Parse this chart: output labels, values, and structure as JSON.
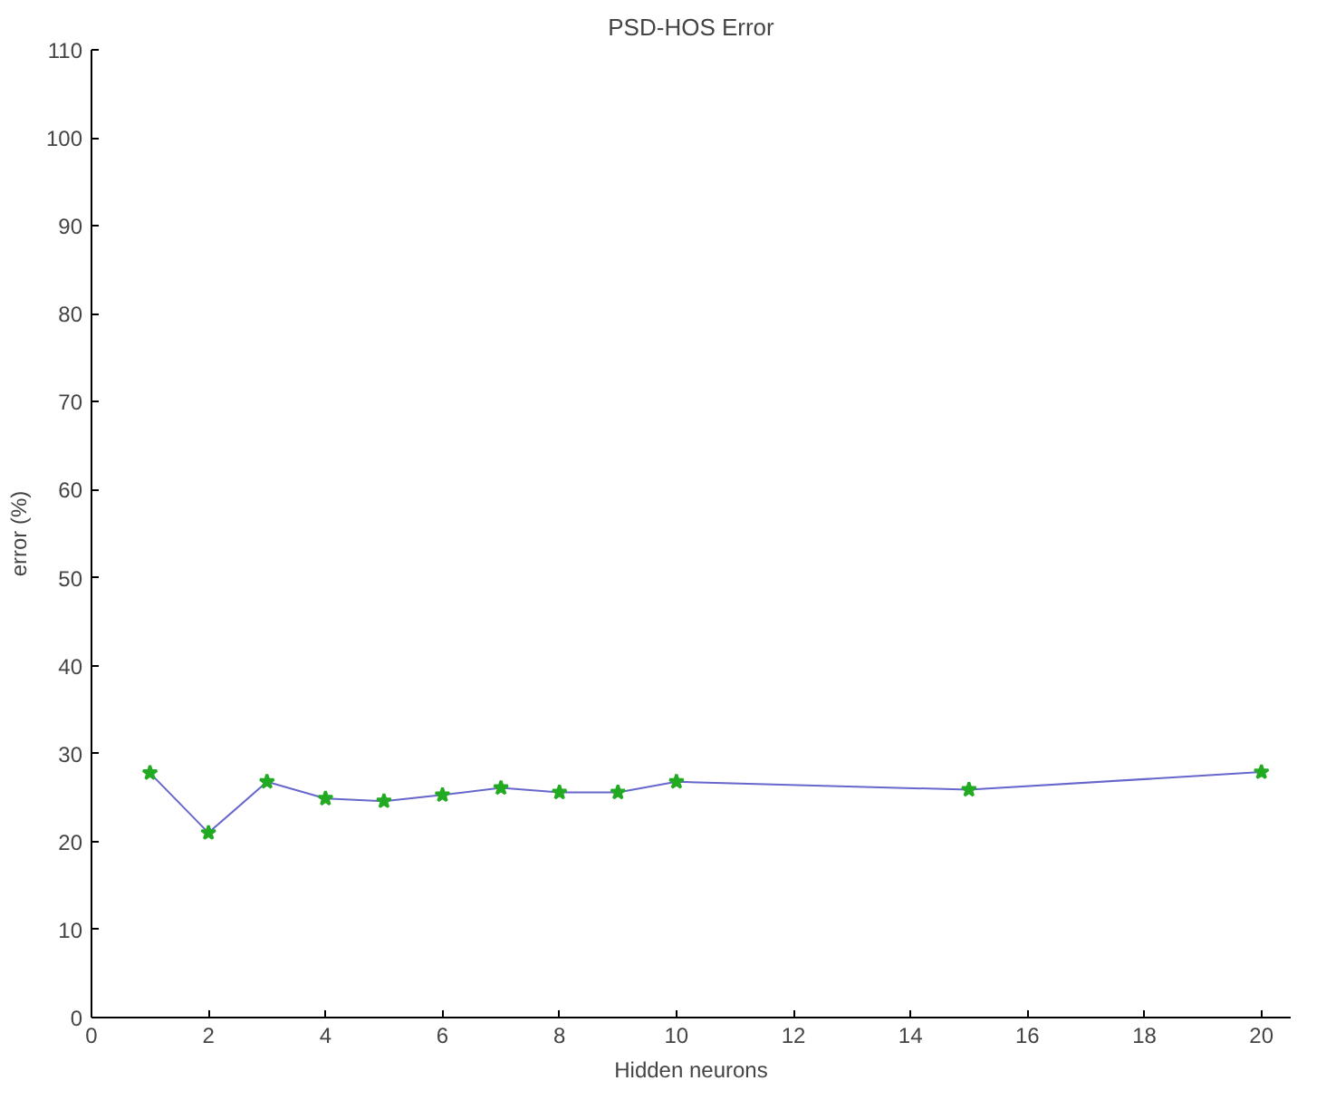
{
  "chart_data": {
    "type": "line",
    "title": "PSD-HOS Error",
    "xlabel": "Hidden neurons",
    "ylabel": "error (%)",
    "x": [
      1,
      2,
      3,
      4,
      5,
      6,
      7,
      8,
      9,
      10,
      15,
      20
    ],
    "series": [
      {
        "color": "#6666cc",
        "values": [
          27.8,
          21,
          26.8,
          24.9,
          24.6,
          25.3,
          26.1,
          25.6,
          25.6,
          26.8,
          25.9,
          27.9
        ]
      }
    ],
    "marker": "star",
    "line_style": "solid",
    "grid": false,
    "xlim": [
      0,
      20.5
    ],
    "xticks": [
      0,
      2,
      4,
      6,
      8,
      10,
      12,
      14,
      16,
      18,
      20
    ],
    "ylim": [
      0,
      110
    ],
    "yticks": [
      0,
      10,
      20,
      30,
      40,
      50,
      60,
      70,
      80,
      90,
      100,
      110
    ]
  }
}
